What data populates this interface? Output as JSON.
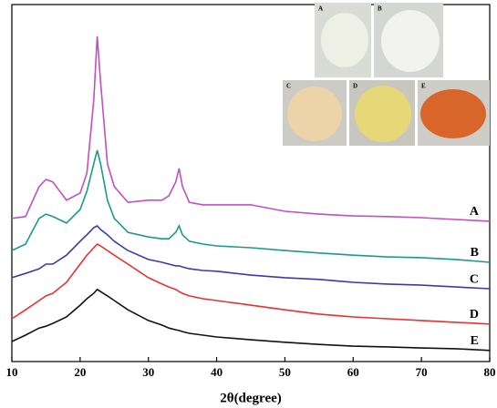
{
  "chart_data": {
    "type": "line",
    "x_label": "2θ(degree)",
    "x": [
      10,
      12,
      14,
      15,
      16,
      18,
      20,
      21,
      22,
      22.5,
      23,
      24,
      25,
      27,
      30,
      32,
      33,
      34,
      34.5,
      35,
      36,
      38,
      40,
      45,
      50,
      55,
      60,
      65,
      70,
      75,
      80
    ],
    "xlim": [
      10,
      80
    ],
    "xticks": [
      10,
      20,
      30,
      40,
      50,
      60,
      70,
      80
    ],
    "ylim": [
      0,
      100
    ],
    "series": [
      {
        "name": "A",
        "color": "#c050c0",
        "values": [
          40.1,
          40.6,
          49.0,
          51.0,
          50.3,
          45.2,
          47.2,
          52.8,
          73.2,
          91.1,
          78.3,
          55.4,
          49.0,
          44.6,
          45.2,
          45.2,
          46.4,
          50.3,
          54.1,
          49.0,
          44.6,
          43.9,
          43.9,
          43.9,
          42.1,
          41.3,
          40.8,
          40.6,
          40.3,
          39.8,
          39.3
        ]
      },
      {
        "name": "B",
        "color": "#1a9a8a",
        "values": [
          31.1,
          32.9,
          40.1,
          41.3,
          40.6,
          38.8,
          42.6,
          47.7,
          55.4,
          59.2,
          55.4,
          45.2,
          40.1,
          36.2,
          34.9,
          34.4,
          34.4,
          36.2,
          38.0,
          35.5,
          33.7,
          32.9,
          32.4,
          31.9,
          31.1,
          30.4,
          29.8,
          29.3,
          29.1,
          28.6,
          27.8
        ]
      },
      {
        "name": "C",
        "color": "#3a3aaa",
        "values": [
          23.5,
          24.7,
          26.0,
          27.3,
          27.3,
          29.8,
          33.7,
          35.5,
          37.5,
          38.0,
          37.0,
          35.5,
          33.7,
          31.1,
          28.6,
          27.8,
          27.3,
          26.8,
          26.8,
          26.5,
          26.0,
          25.5,
          25.3,
          24.2,
          23.5,
          23.0,
          22.2,
          21.7,
          21.4,
          20.9,
          20.4
        ]
      },
      {
        "name": "D",
        "color": "#e83030",
        "values": [
          12.0,
          14.5,
          17.1,
          18.4,
          19.1,
          22.2,
          27.3,
          29.8,
          31.9,
          32.9,
          32.4,
          31.1,
          29.8,
          27.3,
          23.5,
          21.7,
          20.9,
          20.2,
          19.6,
          19.1,
          18.4,
          17.6,
          17.1,
          15.8,
          14.5,
          13.3,
          12.5,
          12.0,
          11.5,
          11.0,
          10.5
        ]
      },
      {
        "name": "E",
        "color": "#111111",
        "values": [
          5.6,
          7.4,
          9.4,
          9.9,
          10.7,
          12.5,
          15.8,
          17.6,
          19.1,
          20.2,
          19.6,
          18.4,
          17.1,
          14.5,
          11.5,
          10.2,
          9.4,
          8.9,
          8.7,
          8.4,
          7.9,
          7.4,
          6.9,
          6.1,
          5.4,
          4.8,
          4.3,
          4.1,
          3.8,
          3.6,
          3.1
        ]
      }
    ],
    "inset_labels": [
      "A",
      "B",
      "C",
      "D",
      "E"
    ]
  }
}
